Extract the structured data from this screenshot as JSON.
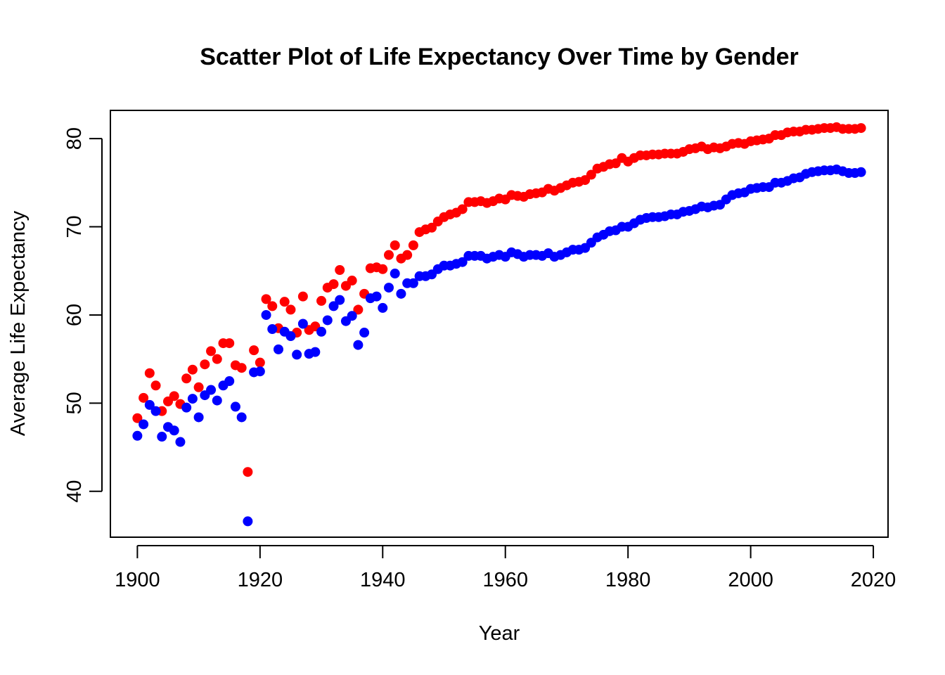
{
  "chart_data": {
    "type": "scatter",
    "title": "Scatter Plot of Life Expectancy Over Time by Gender",
    "xlabel": "Year",
    "ylabel": "Average Life Expectancy",
    "xlim": [
      1895.6,
      2022.4
    ],
    "ylim": [
      34.8,
      83.2
    ],
    "x_ticks": [
      1900,
      1920,
      1940,
      1960,
      1980,
      2000,
      2020
    ],
    "y_ticks": [
      40,
      50,
      60,
      70,
      80
    ],
    "grid": false,
    "legend": "none",
    "x": [
      1900,
      1901,
      1902,
      1903,
      1904,
      1905,
      1906,
      1907,
      1908,
      1909,
      1910,
      1911,
      1912,
      1913,
      1914,
      1915,
      1916,
      1917,
      1918,
      1919,
      1920,
      1921,
      1922,
      1923,
      1924,
      1925,
      1926,
      1927,
      1928,
      1929,
      1930,
      1931,
      1932,
      1933,
      1934,
      1935,
      1936,
      1937,
      1938,
      1939,
      1940,
      1941,
      1942,
      1943,
      1944,
      1945,
      1946,
      1947,
      1948,
      1949,
      1950,
      1951,
      1952,
      1953,
      1954,
      1955,
      1956,
      1957,
      1958,
      1959,
      1960,
      1961,
      1962,
      1963,
      1964,
      1965,
      1966,
      1967,
      1968,
      1969,
      1970,
      1971,
      1972,
      1973,
      1974,
      1975,
      1976,
      1977,
      1978,
      1979,
      1980,
      1981,
      1982,
      1983,
      1984,
      1985,
      1986,
      1987,
      1988,
      1989,
      1990,
      1991,
      1992,
      1993,
      1994,
      1995,
      1996,
      1997,
      1998,
      1999,
      2000,
      2001,
      2002,
      2003,
      2004,
      2005,
      2006,
      2007,
      2008,
      2009,
      2010,
      2011,
      2012,
      2013,
      2014,
      2015,
      2016,
      2017,
      2018
    ],
    "series": [
      {
        "color": "#ff0000",
        "values": [
          48.3,
          50.6,
          53.4,
          52.0,
          49.1,
          50.2,
          50.8,
          49.9,
          52.8,
          53.8,
          51.8,
          54.4,
          55.9,
          55.0,
          56.8,
          56.8,
          54.3,
          54.0,
          42.2,
          56.0,
          54.6,
          61.8,
          61.0,
          58.5,
          61.5,
          60.6,
          58.0,
          62.1,
          58.3,
          58.7,
          61.6,
          63.1,
          63.5,
          65.1,
          63.3,
          63.9,
          60.6,
          62.4,
          65.3,
          65.4,
          65.2,
          66.8,
          67.9,
          66.4,
          66.8,
          67.9,
          69.4,
          69.7,
          69.9,
          70.6,
          71.1,
          71.4,
          71.6,
          72.0,
          72.8,
          72.8,
          72.9,
          72.7,
          72.9,
          73.2,
          73.1,
          73.6,
          73.5,
          73.4,
          73.7,
          73.8,
          73.9,
          74.3,
          74.1,
          74.4,
          74.7,
          75.0,
          75.1,
          75.3,
          75.9,
          76.6,
          76.8,
          77.1,
          77.2,
          77.8,
          77.4,
          77.8,
          78.1,
          78.1,
          78.2,
          78.2,
          78.3,
          78.3,
          78.3,
          78.5,
          78.8,
          78.9,
          79.1,
          78.8,
          79.0,
          78.9,
          79.1,
          79.4,
          79.5,
          79.4,
          79.7,
          79.8,
          79.9,
          80.0,
          80.4,
          80.4,
          80.7,
          80.8,
          80.8,
          81.0,
          81.0,
          81.1,
          81.2,
          81.2,
          81.3,
          81.1,
          81.1,
          81.1,
          81.2
        ]
      },
      {
        "color": "#0000ff",
        "values": [
          46.3,
          47.6,
          49.8,
          49.1,
          46.2,
          47.3,
          46.9,
          45.6,
          49.5,
          50.5,
          48.4,
          50.9,
          51.5,
          50.3,
          52.0,
          52.5,
          49.6,
          48.4,
          36.6,
          53.5,
          53.6,
          60.0,
          58.4,
          56.1,
          58.1,
          57.6,
          55.5,
          59.0,
          55.6,
          55.8,
          58.1,
          59.4,
          61.0,
          61.7,
          59.3,
          59.9,
          56.6,
          58.0,
          61.9,
          62.1,
          60.8,
          63.1,
          64.7,
          62.4,
          63.6,
          63.6,
          64.4,
          64.4,
          64.6,
          65.2,
          65.6,
          65.6,
          65.8,
          66.0,
          66.7,
          66.7,
          66.7,
          66.4,
          66.6,
          66.8,
          66.6,
          67.1,
          66.9,
          66.6,
          66.8,
          66.8,
          66.7,
          67.0,
          66.6,
          66.8,
          67.1,
          67.4,
          67.4,
          67.6,
          68.2,
          68.8,
          69.1,
          69.5,
          69.6,
          70.0,
          70.0,
          70.4,
          70.8,
          71.0,
          71.1,
          71.1,
          71.2,
          71.4,
          71.4,
          71.7,
          71.8,
          72.0,
          72.3,
          72.2,
          72.4,
          72.5,
          73.1,
          73.6,
          73.8,
          73.9,
          74.3,
          74.4,
          74.5,
          74.5,
          75.0,
          75.0,
          75.2,
          75.5,
          75.6,
          76.0,
          76.2,
          76.3,
          76.4,
          76.4,
          76.5,
          76.3,
          76.1,
          76.1,
          76.2
        ]
      }
    ]
  }
}
